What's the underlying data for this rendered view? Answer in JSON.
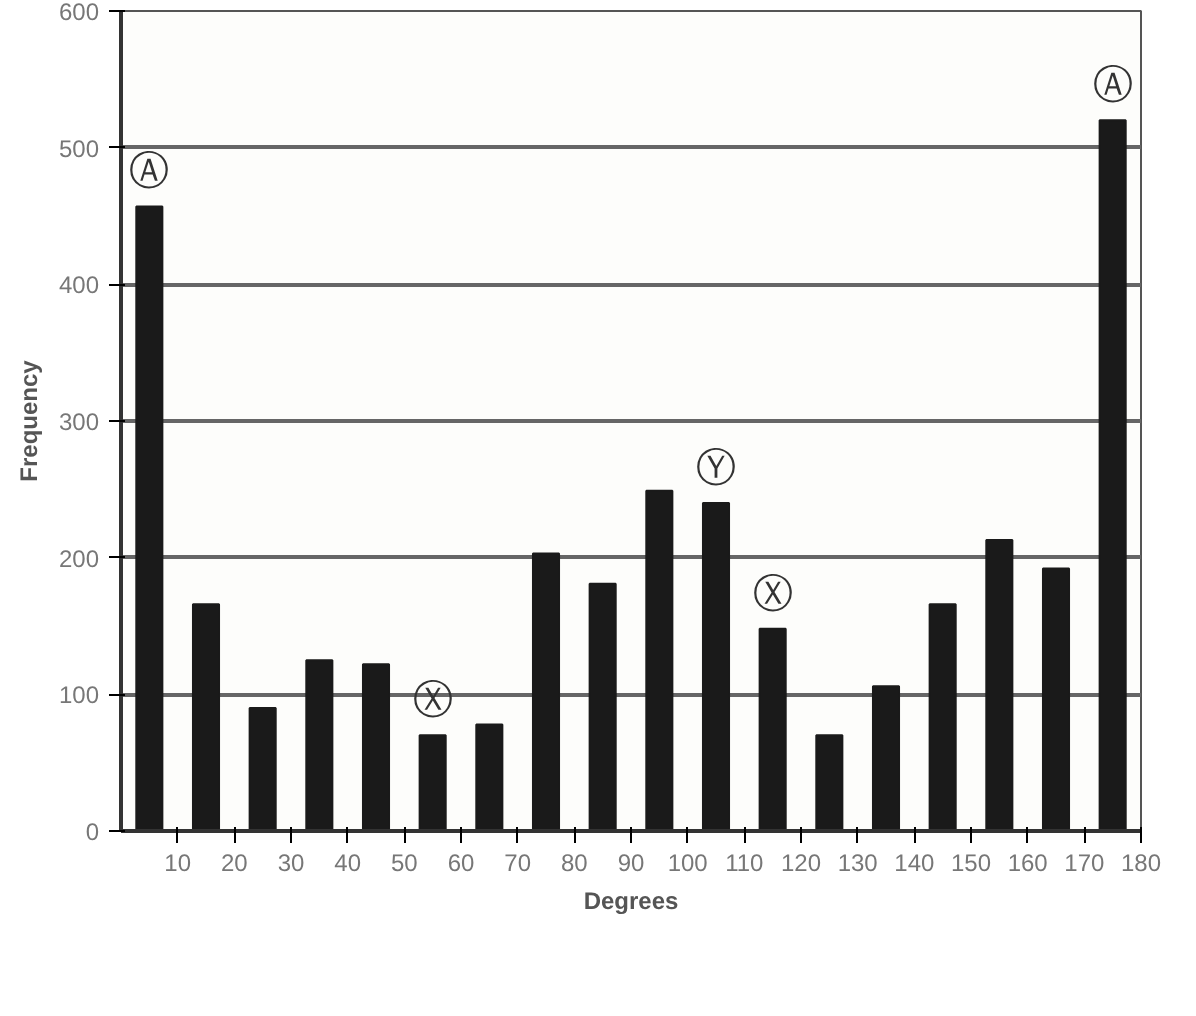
{
  "chart_data": {
    "type": "histogram",
    "xlabel": "Degrees",
    "ylabel": "Frequency",
    "bins": [
      0,
      10,
      20,
      30,
      40,
      50,
      60,
      70,
      80,
      90,
      100,
      110,
      120,
      130,
      140,
      150,
      160,
      170,
      180
    ],
    "values": [
      457,
      166,
      90,
      125,
      122,
      70,
      78,
      203,
      181,
      249,
      240,
      148,
      70,
      106,
      166,
      213,
      192,
      520
    ],
    "color": "#1a1a1a",
    "xlim": [
      0,
      180
    ],
    "xticks": [
      10,
      20,
      30,
      40,
      50,
      60,
      70,
      80,
      90,
      100,
      110,
      120,
      130,
      140,
      150,
      160,
      170,
      180
    ],
    "ylim": [
      0,
      600
    ],
    "yticks": [
      0,
      100,
      200,
      300,
      400,
      500,
      600
    ],
    "grid": "y",
    "annotations": [
      {
        "text": "Ⓐ",
        "x": 5,
        "y": 457
      },
      {
        "text": "Ⓧ",
        "x": 55,
        "y": 70
      },
      {
        "text": "Ⓨ",
        "x": 105,
        "y": 240
      },
      {
        "text": "Ⓧ",
        "x": 115,
        "y": 148
      },
      {
        "text": "Ⓐ",
        "x": 175,
        "y": 520
      }
    ]
  }
}
